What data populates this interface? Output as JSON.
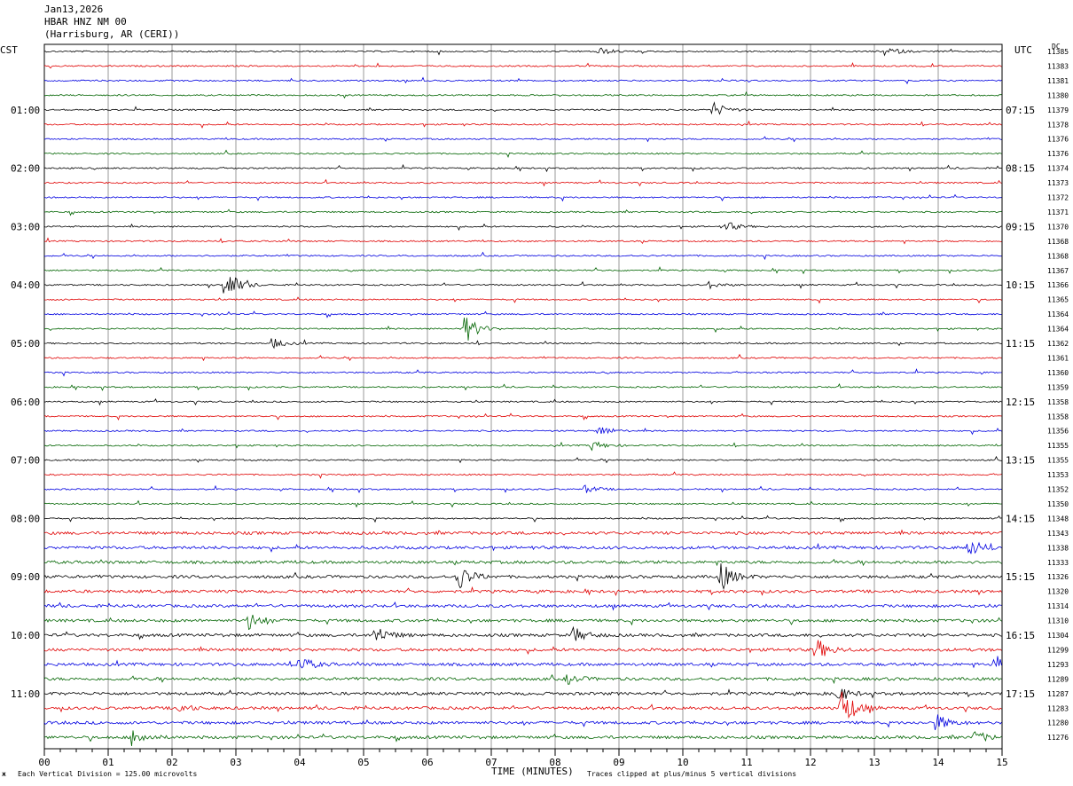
{
  "header": {
    "date": "Jan13,2026",
    "station": "HBAR HNZ NM 00",
    "location": "(Harrisburg, AR (CERI))"
  },
  "left_axis_label": "CST",
  "right_axis_label": "UTC",
  "dc_label": "DC",
  "x_axis_title": "TIME (MINUTES)",
  "footer": {
    "scale_note": "Each Vertical Division =  125.00 microvolts",
    "clip_note": "Traces clipped at plus/minus 5 vertical divisions"
  },
  "colors": {
    "black": "#000000",
    "red": "#e00000",
    "blue": "#0000e0",
    "green": "#006400",
    "grid": "#9a9a9a"
  },
  "chart_data": {
    "type": "line",
    "title": "HBAR HNZ NM 00",
    "xlabel": "TIME (MINUTES)",
    "xlim": [
      0,
      15
    ],
    "x_ticks": [
      "00",
      "01",
      "02",
      "03",
      "04",
      "05",
      "06",
      "07",
      "08",
      "09",
      "10",
      "11",
      "12",
      "13",
      "14",
      "15"
    ],
    "trace_colors_cycle": [
      "black",
      "red",
      "blue",
      "green"
    ],
    "left_hour_labels": [
      {
        "row": 4,
        "label": "01:00"
      },
      {
        "row": 8,
        "label": "02:00"
      },
      {
        "row": 12,
        "label": "03:00"
      },
      {
        "row": 16,
        "label": "04:00"
      },
      {
        "row": 20,
        "label": "05:00"
      },
      {
        "row": 24,
        "label": "06:00"
      },
      {
        "row": 28,
        "label": "07:00"
      },
      {
        "row": 32,
        "label": "08:00"
      },
      {
        "row": 36,
        "label": "09:00"
      },
      {
        "row": 40,
        "label": "10:00"
      },
      {
        "row": 44,
        "label": "11:00"
      }
    ],
    "right_hour_labels": [
      {
        "row": 4,
        "label": "07:15"
      },
      {
        "row": 8,
        "label": "08:15"
      },
      {
        "row": 12,
        "label": "09:15"
      },
      {
        "row": 16,
        "label": "10:15"
      },
      {
        "row": 20,
        "label": "11:15"
      },
      {
        "row": 24,
        "label": "12:15"
      },
      {
        "row": 28,
        "label": "13:15"
      },
      {
        "row": 32,
        "label": "14:15"
      },
      {
        "row": 36,
        "label": "15:15"
      },
      {
        "row": 40,
        "label": "16:15"
      },
      {
        "row": 44,
        "label": "17:15"
      }
    ],
    "dc_values": [
      "11385",
      "11383",
      "11381",
      "11380",
      "11379",
      "11378",
      "11376",
      "11376",
      "11374",
      "11373",
      "11372",
      "11371",
      "11370",
      "11368",
      "11368",
      "11367",
      "11366",
      "11365",
      "11364",
      "11364",
      "11362",
      "11361",
      "11360",
      "11359",
      "11358",
      "11358",
      "11356",
      "11355",
      "11355",
      "11353",
      "11352",
      "11350",
      "11348",
      "11343",
      "11338",
      "11333",
      "11326",
      "11320",
      "11314",
      "11310",
      "11304",
      "11299",
      "11293",
      "11289",
      "11287",
      "11283",
      "11280",
      "11276"
    ],
    "events": [
      {
        "row": 0,
        "minute": 8.7,
        "amplitude": 4
      },
      {
        "row": 0,
        "minute": 13.2,
        "amplitude": 5
      },
      {
        "row": 4,
        "minute": 10.5,
        "amplitude": 8
      },
      {
        "row": 12,
        "minute": 10.7,
        "amplitude": 5
      },
      {
        "row": 16,
        "minute": 2.85,
        "amplitude": 18
      },
      {
        "row": 16,
        "minute": 10.4,
        "amplitude": 4
      },
      {
        "row": 19,
        "minute": 6.6,
        "amplitude": 16
      },
      {
        "row": 20,
        "minute": 3.6,
        "amplitude": 5
      },
      {
        "row": 26,
        "minute": 8.7,
        "amplitude": 6
      },
      {
        "row": 27,
        "minute": 8.6,
        "amplitude": 5
      },
      {
        "row": 30,
        "minute": 8.5,
        "amplitude": 4
      },
      {
        "row": 34,
        "minute": 14.5,
        "amplitude": 9
      },
      {
        "row": 36,
        "minute": 6.5,
        "amplitude": 14
      },
      {
        "row": 36,
        "minute": 10.6,
        "amplitude": 16
      },
      {
        "row": 39,
        "minute": 3.2,
        "amplitude": 10
      },
      {
        "row": 40,
        "minute": 5.2,
        "amplitude": 10
      },
      {
        "row": 40,
        "minute": 8.3,
        "amplitude": 8
      },
      {
        "row": 41,
        "minute": 12.1,
        "amplitude": 12
      },
      {
        "row": 42,
        "minute": 4.0,
        "amplitude": 9
      },
      {
        "row": 42,
        "minute": 14.9,
        "amplitude": 10
      },
      {
        "row": 43,
        "minute": 8.2,
        "amplitude": 5
      },
      {
        "row": 44,
        "minute": 12.4,
        "amplitude": 8
      },
      {
        "row": 45,
        "minute": 12.5,
        "amplitude": 22
      },
      {
        "row": 45,
        "minute": 2.1,
        "amplitude": 5
      },
      {
        "row": 46,
        "minute": 14.0,
        "amplitude": 8
      },
      {
        "row": 47,
        "minute": 1.4,
        "amplitude": 9
      },
      {
        "row": 47,
        "minute": 14.6,
        "amplitude": 6
      }
    ]
  }
}
